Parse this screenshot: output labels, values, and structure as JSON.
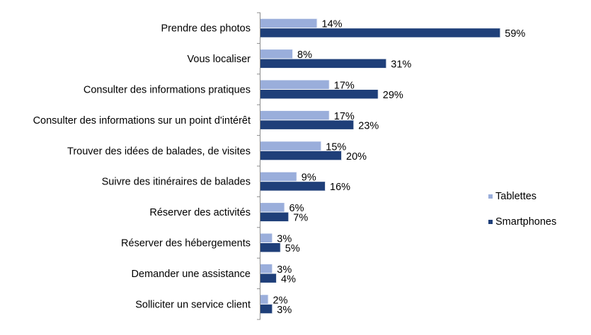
{
  "chart_data": {
    "type": "bar",
    "orientation": "horizontal",
    "categories": [
      "Prendre des photos",
      "Vous localiser",
      "Consulter des informations pratiques",
      "Consulter des informations sur un point d'intérêt",
      "Trouver des idées de balades, de visites",
      "Suivre des itinéraires de balades",
      "Réserver des activités",
      "Réserver des hébergements",
      "Demander une assistance",
      "Solliciter un service client"
    ],
    "series": [
      {
        "name": "Tablettes",
        "color": "#9aaedb",
        "values": [
          14,
          8,
          17,
          17,
          15,
          9,
          6,
          3,
          3,
          2
        ]
      },
      {
        "name": "Smartphones",
        "color": "#1f3f79",
        "values": [
          59,
          31,
          29,
          23,
          20,
          16,
          7,
          5,
          4,
          3
        ]
      }
    ],
    "value_suffix": "%",
    "xlim": [
      0,
      100
    ],
    "grid": false,
    "legend_position": "right"
  }
}
